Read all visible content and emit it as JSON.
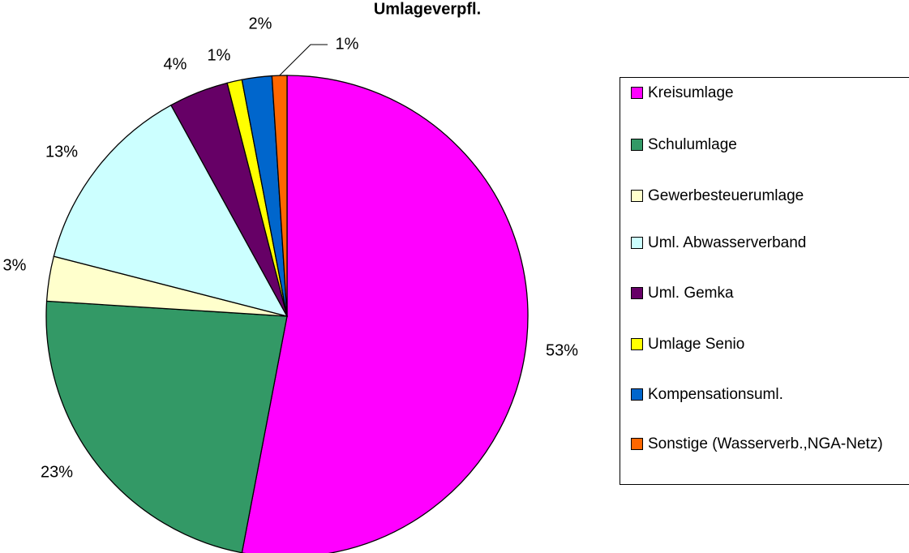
{
  "chart_data": {
    "type": "pie",
    "title": "Umlageverpfl.",
    "categories": [
      "Kreisumlage",
      "Schulumlage",
      "Gewerbesteuerumlage",
      "Uml. Abwasserverband",
      "Uml. Gemka",
      "Umlage Senio",
      "Kompensationsuml.",
      "Sonstige (Wasserverb.,NGA-Netz)"
    ],
    "values": [
      53,
      23,
      3,
      13,
      4,
      1,
      2,
      1
    ],
    "value_labels": [
      "53%",
      "23%",
      "3%",
      "13%",
      "4%",
      "1%",
      "2%",
      "1%"
    ],
    "colors": [
      "#ff00ff",
      "#339966",
      "#ffffcc",
      "#ccffff",
      "#660066",
      "#ffff00",
      "#0066cc",
      "#ff6600"
    ],
    "legend": "right"
  }
}
